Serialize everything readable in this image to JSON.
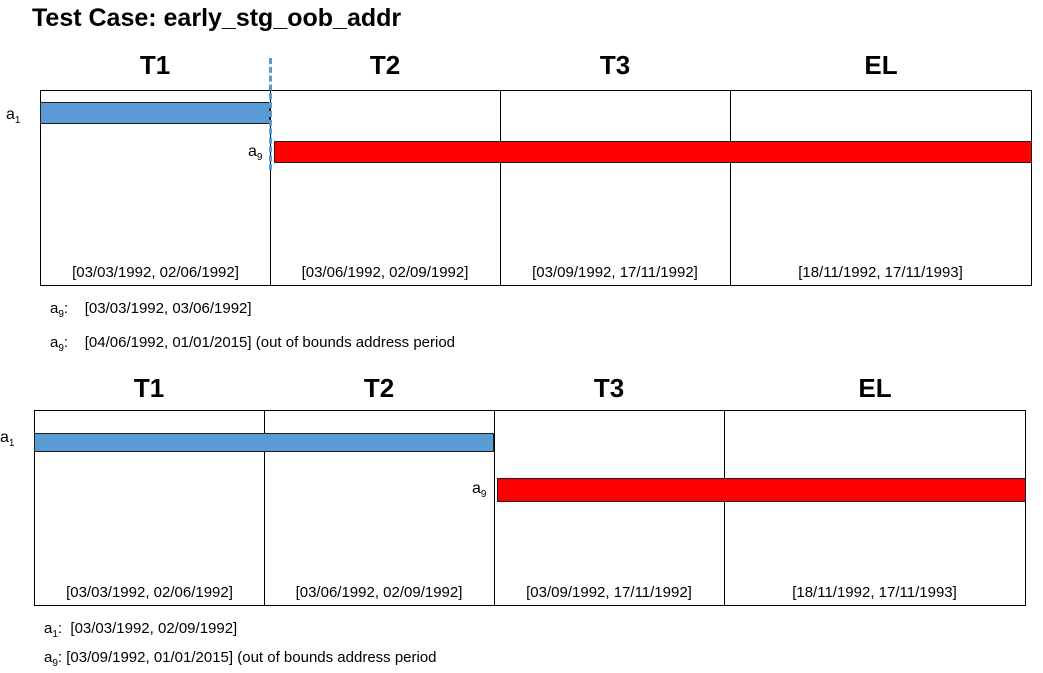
{
  "title": "Test Case: early_stg_oob_addr",
  "colors": {
    "blue_bar": "#5b9bd5",
    "red_bar": "#ff0000",
    "dashed_line": "#5b9bd5"
  },
  "diagrams": [
    {
      "periods": [
        {
          "label": "T1",
          "range": "[03/03/1992, 02/06/1992]"
        },
        {
          "label": "T2",
          "range": "[03/06/1992, 02/09/1992]"
        },
        {
          "label": "T3",
          "range": "[03/09/1992, 17/11/1992]"
        },
        {
          "label": "EL",
          "range": "[18/11/1992, 17/11/1993]"
        }
      ],
      "bars": [
        {
          "label_base": "a",
          "label_sub": "1",
          "color": "blue"
        },
        {
          "label_base": "a",
          "label_sub": "9",
          "color": "red"
        }
      ],
      "notes": [
        {
          "label_base": "a",
          "label_sub": "9",
          "text": ":    [03/03/1992, 03/06/1992]"
        },
        {
          "label_base": "a",
          "label_sub": "9",
          "text": ":    [04/06/1992, 01/01/2015] (out of bounds address period"
        }
      ]
    },
    {
      "periods": [
        {
          "label": "T1",
          "range": "[03/03/1992, 02/06/1992]"
        },
        {
          "label": "T2",
          "range": "[03/06/1992, 02/09/1992]"
        },
        {
          "label": "T3",
          "range": "[03/09/1992, 17/11/1992]"
        },
        {
          "label": "EL",
          "range": "[18/11/1992, 17/11/1993]"
        }
      ],
      "bars": [
        {
          "label_base": "a",
          "label_sub": "1",
          "color": "blue"
        },
        {
          "label_base": "a",
          "label_sub": "9",
          "color": "red"
        }
      ],
      "notes": [
        {
          "label_base": "a",
          "label_sub": "1",
          "text": ":  [03/03/1992, 02/09/1992]"
        },
        {
          "label_base": "a",
          "label_sub": "9",
          "text": ": [03/09/1992, 01/01/2015] (out of bounds address period"
        }
      ]
    }
  ]
}
